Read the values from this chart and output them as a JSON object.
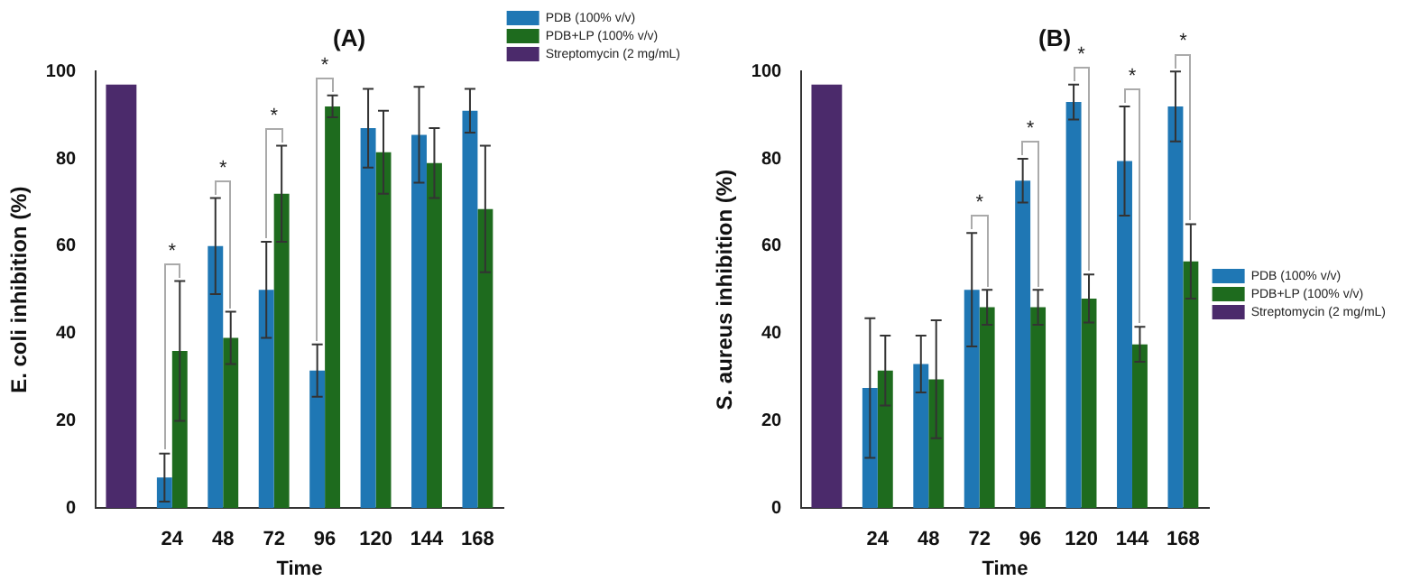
{
  "chart_data": [
    {
      "type": "bar",
      "title": "(A)",
      "xlabel": "Time",
      "ylabel": "E. coli inhibition (%)",
      "categories": [
        null,
        "24",
        "48",
        "72",
        "96",
        "120",
        "144",
        "168"
      ],
      "series": [
        {
          "name": "PDB (100% v/v)",
          "color": "#1f77b4",
          "values": [
            null,
            7,
            60,
            50,
            31.5,
            87,
            85.5,
            91
          ],
          "errors": [
            null,
            5.5,
            11,
            11,
            6,
            9,
            11,
            5
          ]
        },
        {
          "name": "PDB+LP (100% v/v)",
          "color": "#1e6b1e",
          "values": [
            null,
            36,
            39,
            72,
            92,
            81.5,
            79,
            68.5
          ],
          "errors": [
            null,
            16,
            6,
            11,
            2.5,
            9.5,
            8,
            14.5
          ]
        },
        {
          "name": "Streptomycin (2 mg/mL)",
          "color": "#4b2a6b",
          "values": [
            97,
            null,
            null,
            null,
            null,
            null,
            null,
            null
          ]
        }
      ],
      "ylim": [
        0,
        100
      ],
      "yticks": [
        0,
        20,
        40,
        60,
        80,
        100
      ],
      "grid": false,
      "legend": "top right",
      "annotations": [
        {
          "text": "*",
          "x": "24",
          "y": 52
        },
        {
          "text": "*",
          "x": "48",
          "y": 71
        },
        {
          "text": "*",
          "x": "72",
          "y": 83
        },
        {
          "text": "*",
          "x": "96",
          "y": 94.5
        }
      ]
    },
    {
      "type": "bar",
      "title": "(B)",
      "xlabel": "Time",
      "ylabel": "S. aureus inhibition (%)",
      "categories": [
        null,
        "24",
        "48",
        "72",
        "96",
        "120",
        "144",
        "168"
      ],
      "series": [
        {
          "name": "PDB (100% v/v)",
          "color": "#1f77b4",
          "values": [
            null,
            27.5,
            33,
            50,
            75,
            93,
            79.5,
            92
          ],
          "errors": [
            null,
            16,
            6.5,
            13,
            5,
            4,
            12.5,
            8
          ]
        },
        {
          "name": "PDB+LP (100% v/v)",
          "color": "#1e6b1e",
          "values": [
            null,
            31.5,
            29.5,
            46,
            46,
            48,
            37.5,
            56.5
          ],
          "errors": [
            null,
            8,
            13.5,
            4,
            4,
            5.5,
            4,
            8.5
          ]
        },
        {
          "name": "Streptomycin (2 mg/mL)",
          "color": "#4b2a6b",
          "values": [
            97,
            null,
            null,
            null,
            null,
            null,
            null,
            null
          ]
        }
      ],
      "ylim": [
        0,
        100
      ],
      "yticks": [
        0,
        20,
        40,
        60,
        80,
        100
      ],
      "grid": false,
      "legend": "right",
      "annotations": [
        {
          "text": "*",
          "x": "72",
          "y": 63
        },
        {
          "text": "*",
          "x": "96",
          "y": 80
        },
        {
          "text": "*",
          "x": "120",
          "y": 97
        },
        {
          "text": "*",
          "x": "144",
          "y": 92
        },
        {
          "text": "*",
          "x": "168",
          "y": 100
        }
      ]
    }
  ]
}
